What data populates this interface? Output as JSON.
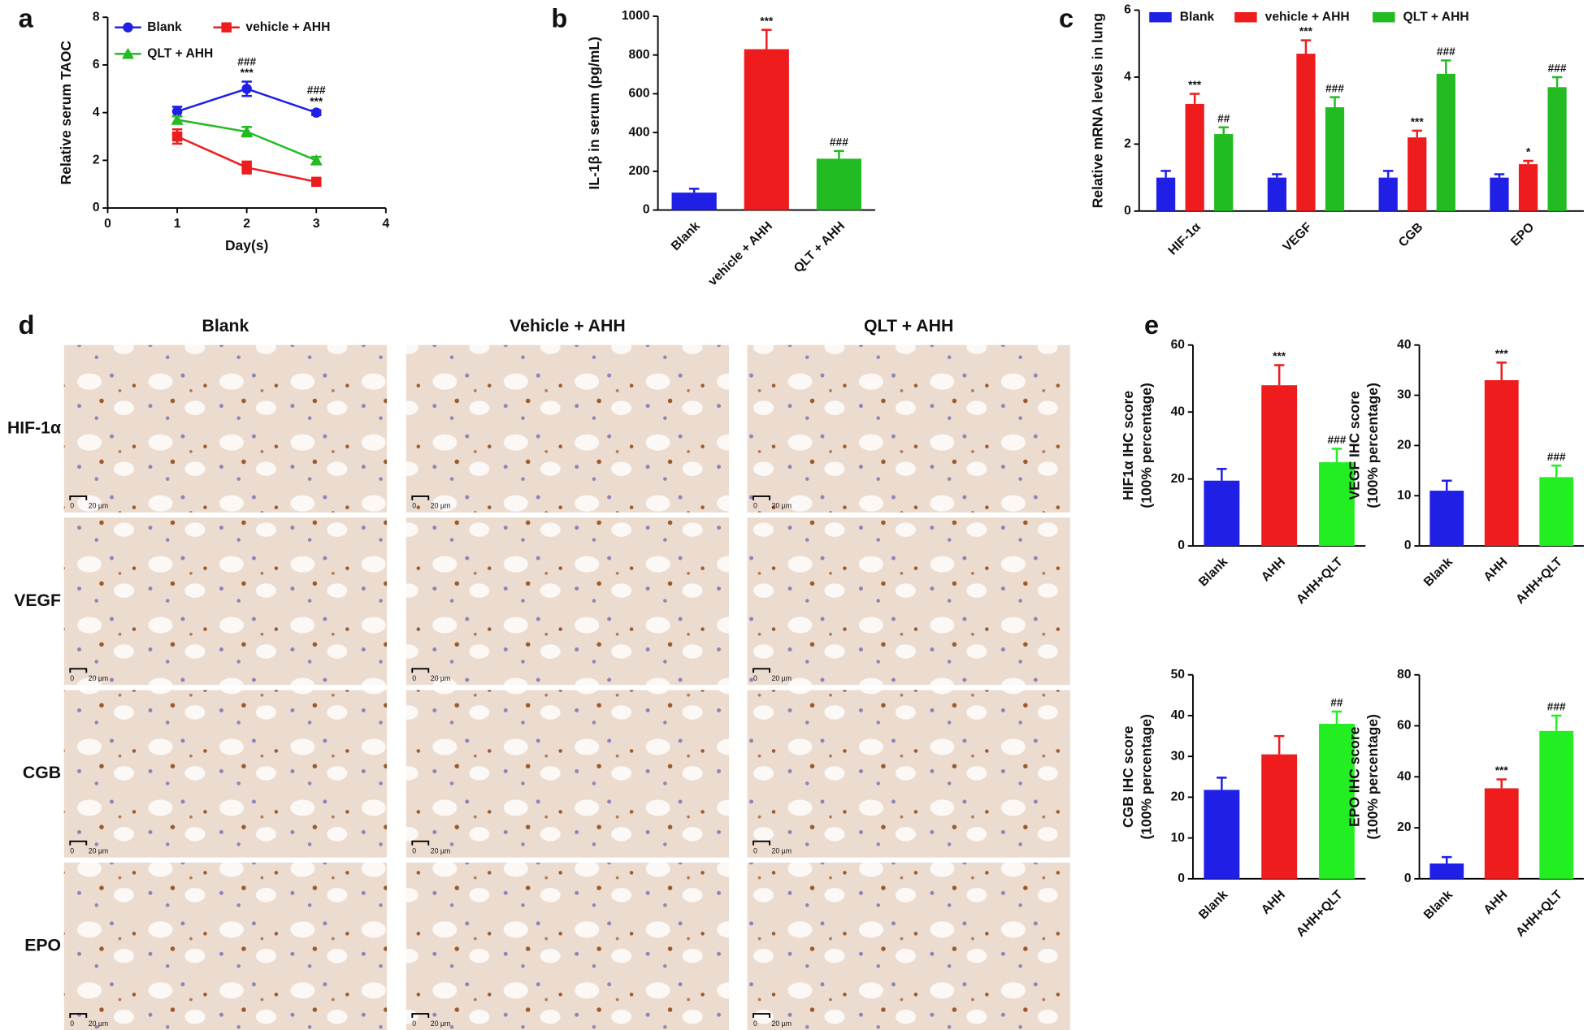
{
  "chart_data": [
    {
      "type": "line",
      "panel": "a",
      "ylabel": "Relative serum TAOC",
      "xlabel": "Day(s)",
      "x": [
        1,
        2,
        3
      ],
      "xlim": [
        0,
        4
      ],
      "xticks": [
        0,
        1,
        2,
        3,
        4
      ],
      "ylim": [
        0,
        8
      ],
      "yticks": [
        0,
        2,
        4,
        6,
        8
      ],
      "series": [
        {
          "name": "Blank",
          "color": "#1f1fe6",
          "marker": "circle",
          "values": [
            4.05,
            5.0,
            4.0
          ],
          "errors": [
            0.2,
            0.3,
            0.1
          ]
        },
        {
          "name": "vehicle + AHH",
          "color": "#ee1c1c",
          "marker": "square",
          "values": [
            3.0,
            1.7,
            1.1
          ],
          "errors": [
            0.3,
            0.25,
            0.15
          ]
        },
        {
          "name": "QLT + AHH",
          "color": "#22bb22",
          "marker": "triangle",
          "values": [
            3.7,
            3.2,
            2.0
          ],
          "errors": [
            0.15,
            0.2,
            0.15
          ]
        }
      ],
      "annotations": [
        {
          "x": 2,
          "text": "###"
        },
        {
          "x": 2,
          "text": "***"
        },
        {
          "x": 3,
          "text": "###"
        },
        {
          "x": 3,
          "text": "***"
        }
      ]
    },
    {
      "type": "bar",
      "panel": "b",
      "ylabel": "IL-1β in serum (pg/mL)",
      "categories": [
        "Blank",
        "vehicle + AHH",
        "QLT + AHH"
      ],
      "values": [
        90,
        830,
        265
      ],
      "errors": [
        20,
        100,
        40
      ],
      "colors": [
        "#1f1fe6",
        "#ee1c1c",
        "#22bb22"
      ],
      "significance": [
        null,
        "***",
        "###"
      ],
      "ylim": [
        0,
        1000
      ],
      "yticks": [
        0,
        200,
        400,
        600,
        800,
        1000
      ]
    },
    {
      "type": "bar",
      "panel": "c",
      "ylabel": "Relative mRNA levels in lung",
      "categories": [
        "HIF-1α",
        "VEGF",
        "CGB",
        "EPO"
      ],
      "ylim": [
        0,
        6
      ],
      "yticks": [
        0,
        2,
        4,
        6
      ],
      "series": [
        {
          "name": "Blank",
          "color": "#1f1fe6",
          "values": [
            1,
            1,
            1,
            1
          ],
          "errors": [
            0.2,
            0.1,
            0.2,
            0.1
          ],
          "significance": [
            null,
            null,
            null,
            null
          ]
        },
        {
          "name": "vehicle + AHH",
          "color": "#ee1c1c",
          "values": [
            3.2,
            4.7,
            2.2,
            1.4
          ],
          "errors": [
            0.3,
            0.4,
            0.2,
            0.1
          ],
          "significance": [
            "***",
            "***",
            "***",
            "*"
          ]
        },
        {
          "name": "QLT + AHH",
          "color": "#22bb22",
          "values": [
            2.3,
            3.1,
            4.1,
            3.7
          ],
          "errors": [
            0.2,
            0.3,
            0.4,
            0.3
          ],
          "significance": [
            "##",
            "###",
            "###",
            "###"
          ]
        }
      ]
    },
    {
      "type": "bar",
      "panel": "e",
      "ylabel": [
        "HIF1α IHC score",
        "(100% percentage)"
      ],
      "categories": [
        "Blank",
        "AHH",
        "AHH+QLT"
      ],
      "values": [
        19.5,
        48,
        25
      ],
      "errors": [
        3.5,
        6,
        4
      ],
      "colors": [
        "#1f1fe6",
        "#ee1c1c",
        "#22ee22"
      ],
      "significance": [
        null,
        "***",
        "###"
      ],
      "ylim": [
        0,
        60
      ],
      "yticks": [
        0,
        20,
        40,
        60
      ]
    },
    {
      "type": "bar",
      "ylabel": [
        "VEGF IHC score",
        "(100% percentage)"
      ],
      "categories": [
        "Blank",
        "AHH",
        "AHH+QLT"
      ],
      "values": [
        11,
        33,
        13.7
      ],
      "errors": [
        2,
        3.5,
        2.3
      ],
      "colors": [
        "#1f1fe6",
        "#ee1c1c",
        "#22ee22"
      ],
      "significance": [
        null,
        "***",
        "###"
      ],
      "ylim": [
        0,
        40
      ],
      "yticks": [
        0,
        10,
        20,
        30,
        40
      ]
    },
    {
      "type": "bar",
      "ylabel": [
        "CGB IHC score",
        "(100% percentage)"
      ],
      "categories": [
        "Blank",
        "AHH",
        "AHH+QLT"
      ],
      "values": [
        21.8,
        30.5,
        38
      ],
      "errors": [
        3,
        4.5,
        3
      ],
      "colors": [
        "#1f1fe6",
        "#ee1c1c",
        "#22ee22"
      ],
      "significance": [
        null,
        null,
        "##"
      ],
      "ylim": [
        0,
        50
      ],
      "yticks": [
        0,
        10,
        20,
        30,
        40,
        50
      ]
    },
    {
      "type": "bar",
      "ylabel": [
        "EPO IHC score",
        "(100% percentage)"
      ],
      "categories": [
        "Blank",
        "AHH",
        "AHH+QLT"
      ],
      "values": [
        6,
        35.5,
        58
      ],
      "errors": [
        2.5,
        3.5,
        6
      ],
      "colors": [
        "#1f1fe6",
        "#ee1c1c",
        "#22ee22"
      ],
      "significance": [
        null,
        "***",
        "###"
      ],
      "ylim": [
        0,
        80
      ],
      "yticks": [
        0,
        20,
        40,
        60,
        80
      ]
    }
  ],
  "image_grid": {
    "panel": "d",
    "columns": [
      "Blank",
      "Vehicle + AHH",
      "QLT + AHH"
    ],
    "rows": [
      "HIF-1α",
      "VEGF",
      "CGB",
      "EPO"
    ],
    "scale_bar": [
      "0",
      "20 µm"
    ]
  }
}
